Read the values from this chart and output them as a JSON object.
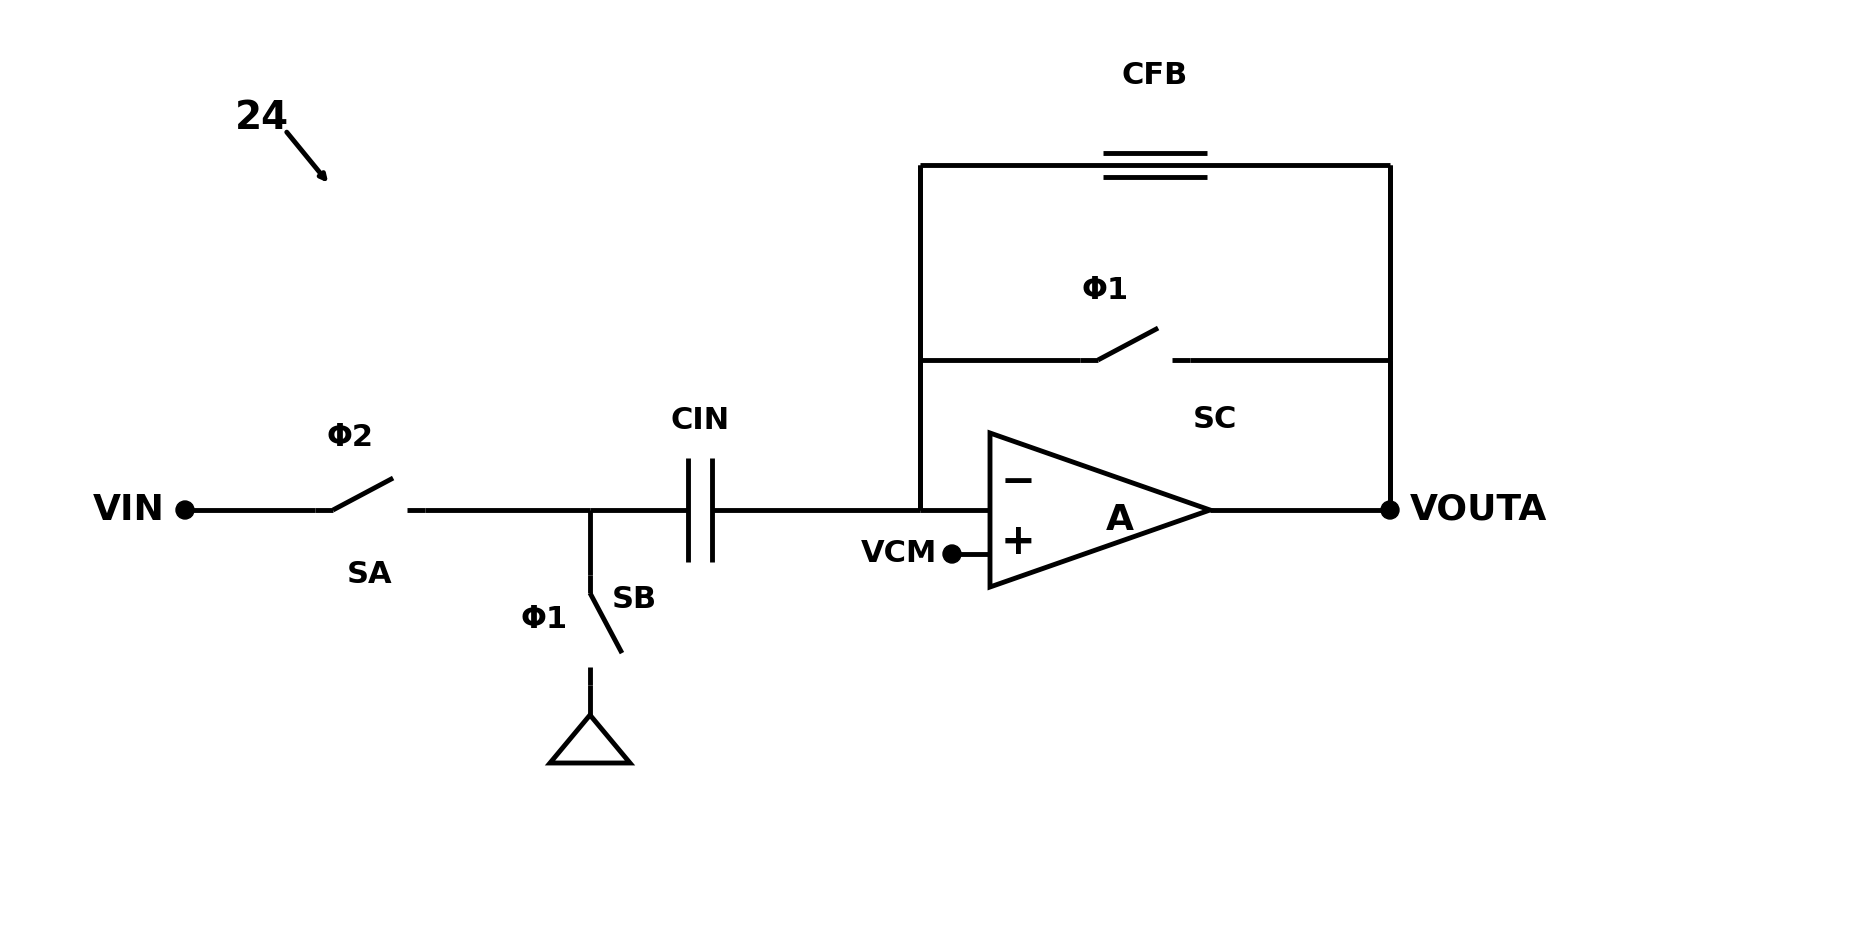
{
  "background_color": "#ffffff",
  "line_color": "black",
  "line_width": 3.5,
  "fig_width": 18.73,
  "fig_height": 9.5,
  "label_24": "24",
  "label_vin": "VIN",
  "label_vouta": "VOUTA",
  "label_vcm": "VCM",
  "label_sa": "SA",
  "label_sb": "SB",
  "label_sc": "SC",
  "label_cin": "CIN",
  "label_cfb": "CFB",
  "label_phi2": "Φ2",
  "label_phi1_sb": "Φ1",
  "label_phi1_sc": "Φ1",
  "label_a": "A",
  "font_size": 22,
  "font_size_large": 26,
  "font_family": "DejaVu Sans"
}
